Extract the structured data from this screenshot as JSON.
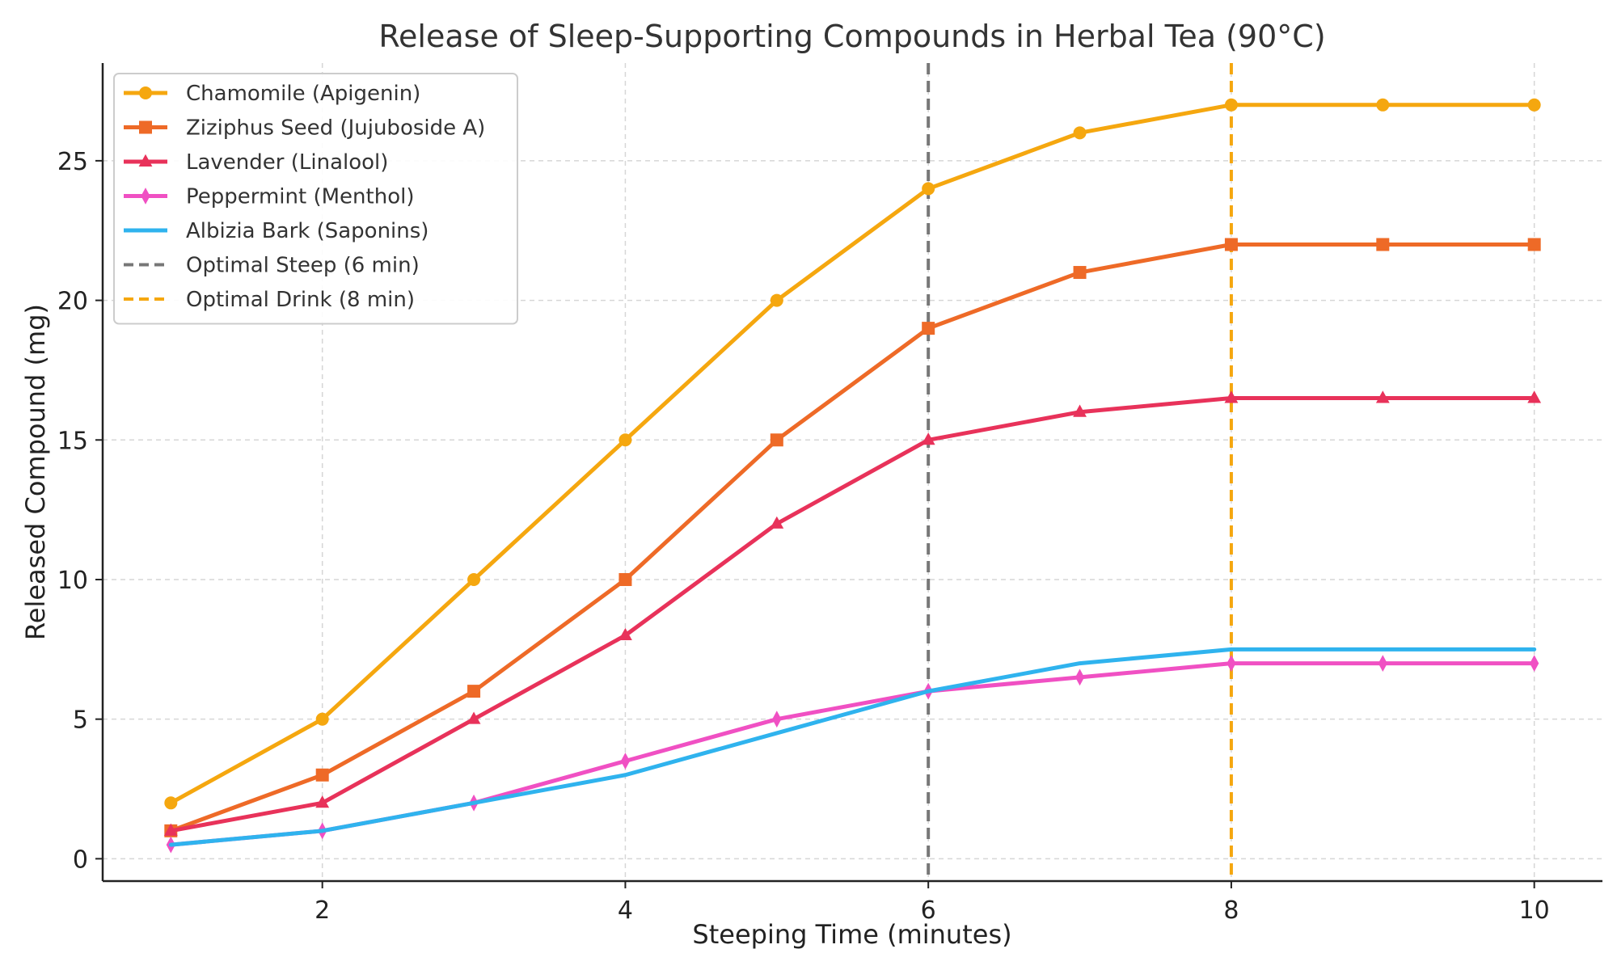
{
  "chart_data": {
    "type": "line",
    "title": "Release of Sleep-Supporting Compounds in Herbal Tea (90°C)",
    "xlabel": "Steeping Time (minutes)",
    "ylabel": "Released Compound (mg)",
    "xlim": [
      0.55,
      10.45
    ],
    "ylim": [
      -0.8,
      28.5
    ],
    "xticks": [
      2,
      4,
      6,
      8,
      10
    ],
    "yticks": [
      0,
      5,
      10,
      15,
      20,
      25
    ],
    "grid": true,
    "legend_position": "top-left",
    "x": [
      1,
      2,
      3,
      4,
      5,
      6,
      7,
      8,
      9,
      10
    ],
    "series": [
      {
        "name": "Chamomile (Apigenin)",
        "color": "#F5A70F",
        "marker": "circle",
        "values": [
          2,
          5,
          10,
          15,
          20,
          24,
          26,
          27,
          27,
          27
        ]
      },
      {
        "name": "Ziziphus Seed (Jujuboside A)",
        "color": "#EE6A27",
        "marker": "square",
        "values": [
          1,
          3,
          6,
          10,
          15,
          19,
          21,
          22,
          22,
          22
        ]
      },
      {
        "name": "Lavender (Linalool)",
        "color": "#E8325A",
        "marker": "triangle",
        "values": [
          1,
          2,
          5,
          8,
          12,
          15,
          16,
          16.5,
          16.5,
          16.5
        ]
      },
      {
        "name": "Peppermint (Menthol)",
        "color": "#F050C3",
        "marker": "diamond",
        "values": [
          0.5,
          1,
          2,
          3.5,
          5,
          6,
          6.5,
          7,
          7,
          7
        ]
      },
      {
        "name": "Albizia Bark (Saponins)",
        "color": "#2FB3EE",
        "marker": "none",
        "values": [
          0.5,
          1,
          2,
          3,
          4.5,
          6,
          7,
          7.5,
          7.5,
          7.5
        ]
      }
    ],
    "vlines": [
      {
        "name": "Optimal Steep (6 min)",
        "x": 6,
        "color": "#777777"
      },
      {
        "name": "Optimal Drink (8 min)",
        "x": 8,
        "color": "#F5A70F"
      }
    ]
  }
}
